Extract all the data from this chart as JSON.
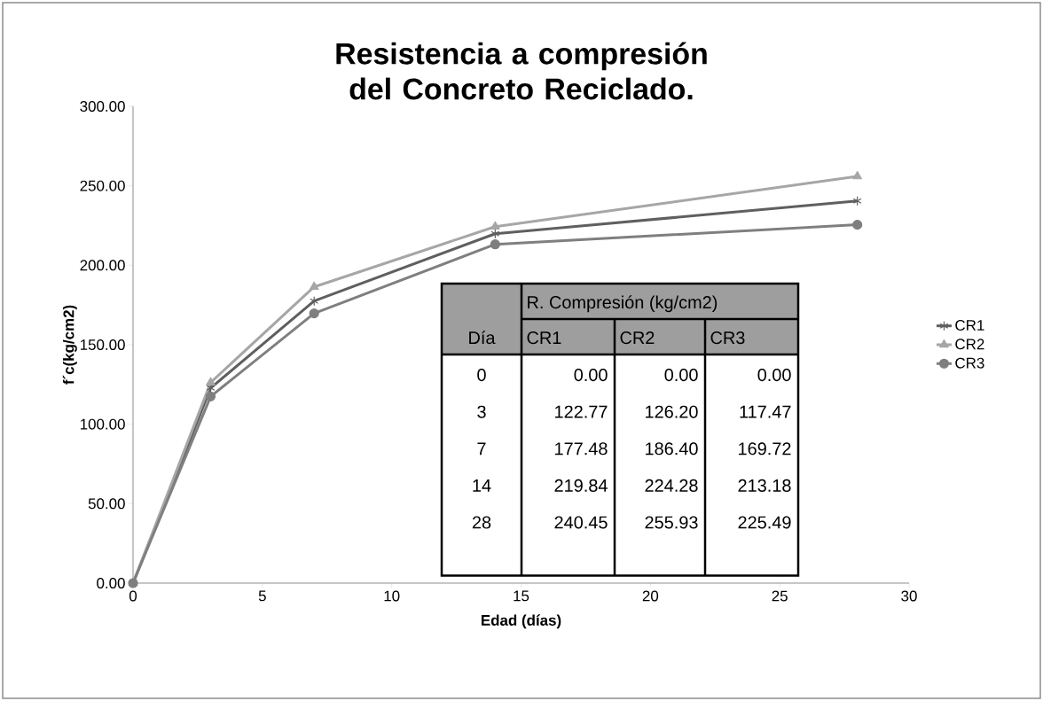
{
  "chart_data": {
    "type": "line",
    "title": "Resistencia a compresión del Concreto Reciclado.",
    "xlabel": "Edad (días)",
    "ylabel": "f´c(kg/cm2)",
    "x": [
      0,
      3,
      7,
      14,
      28
    ],
    "series": [
      {
        "name": "CR1",
        "color": "#5f5f5f",
        "marker": "cross",
        "values": [
          0,
          122.77,
          177.48,
          219.84,
          240.45
        ]
      },
      {
        "name": "CR2",
        "color": "#a6a6a6",
        "marker": "triangle",
        "values": [
          0,
          126.2,
          186.4,
          224.28,
          255.93
        ]
      },
      {
        "name": "CR3",
        "color": "#7f7f7f",
        "marker": "circle",
        "values": [
          0,
          117.47,
          169.72,
          213.18,
          225.49
        ]
      }
    ],
    "annotations": [
      "Día",
      "R. Compresión (kg/cm2)",
      "0",
      "0.00",
      "0.00",
      "0.00",
      "3",
      "122.77",
      "126.20",
      "117.47",
      "7",
      "177.48",
      "186.40",
      "169.72",
      "14",
      "219.84",
      "224.28",
      "213.18",
      "28",
      "240.45",
      "255.93",
      "225.49"
    ],
    "xlim": [
      0,
      30
    ],
    "xticks": [
      0,
      5,
      10,
      15,
      20,
      25,
      30
    ],
    "ylim": [
      0,
      300
    ],
    "yticks": [
      {
        "value": 0,
        "label": "0.00"
      },
      {
        "value": 50,
        "label": "50.00"
      },
      {
        "value": 100,
        "label": "100.00"
      },
      {
        "value": 150,
        "label": "150.00"
      },
      {
        "value": 200,
        "label": "200.00"
      },
      {
        "value": 250,
        "label": "250.00"
      },
      {
        "value": 300,
        "label": "300.00"
      }
    ],
    "legend": "right",
    "grid": false
  }
}
